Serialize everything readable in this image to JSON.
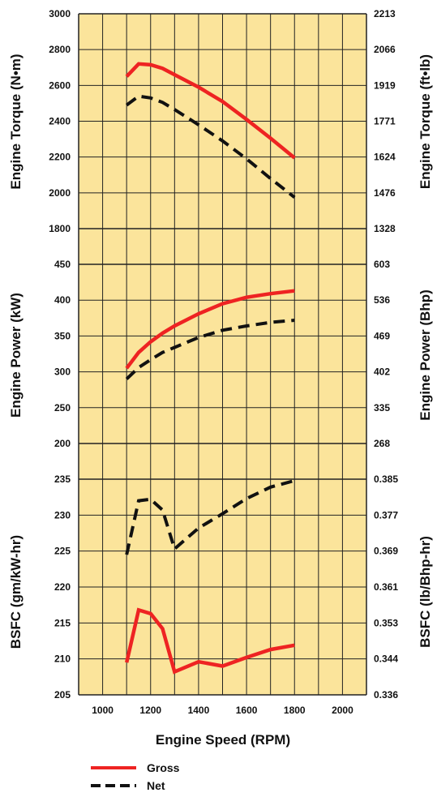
{
  "colors": {
    "plot_bg": "#fbe49b",
    "grid": "#222222",
    "gross": "#ee2322",
    "net": "#111111"
  },
  "chart_data": [
    {
      "type": "line",
      "title": "",
      "xlabel": "Engine Speed (RPM)",
      "ylabel": "Engine Torque (N•m)",
      "ylabel_right": "Engine Torque (ft•lb)",
      "ylim": [
        1800,
        3000
      ],
      "yticks": [
        "3000",
        "2800",
        "2600",
        "2400",
        "2200",
        "2000",
        "1800"
      ],
      "yticks_right": [
        "2213",
        "2066",
        "1919",
        "1771",
        "1624",
        "1476",
        "1328"
      ],
      "series": [
        {
          "name": "Gross",
          "x": [
            1100,
            1150,
            1200,
            1250,
            1300,
            1400,
            1500,
            1600,
            1700,
            1800
          ],
          "y": [
            2650,
            2720,
            2715,
            2695,
            2660,
            2590,
            2510,
            2410,
            2305,
            2195
          ]
        },
        {
          "name": "Net",
          "x": [
            1100,
            1150,
            1200,
            1250,
            1300,
            1400,
            1500,
            1600,
            1700,
            1800
          ],
          "y": [
            2490,
            2540,
            2530,
            2505,
            2465,
            2380,
            2290,
            2190,
            2080,
            1975
          ]
        }
      ]
    },
    {
      "type": "line",
      "xlabel": "Engine Speed (RPM)",
      "ylabel": "Engine Power (kW)",
      "ylabel_right": "Engine Power (Bhp)",
      "ylim": [
        200,
        450
      ],
      "yticks": [
        "450",
        "400",
        "350",
        "300",
        "250",
        "200"
      ],
      "yticks_right": [
        "603",
        "536",
        "469",
        "402",
        "335",
        "268"
      ],
      "series": [
        {
          "name": "Gross",
          "x": [
            1100,
            1150,
            1200,
            1250,
            1300,
            1400,
            1500,
            1600,
            1700,
            1800
          ],
          "y": [
            305,
            327,
            342,
            354,
            364,
            381,
            395,
            404,
            409,
            413
          ]
        },
        {
          "name": "Net",
          "x": [
            1100,
            1150,
            1200,
            1250,
            1300,
            1400,
            1500,
            1600,
            1700,
            1800
          ],
          "y": [
            290,
            306,
            317,
            327,
            334,
            348,
            358,
            364,
            369,
            372
          ]
        }
      ]
    },
    {
      "type": "line",
      "xlabel": "Engine Speed (RPM)",
      "ylabel": "BSFC (gm/kW-hr)",
      "ylabel_right": "BSFC (lb/Bhp-hr)",
      "ylim": [
        205,
        235
      ],
      "yticks": [
        "235",
        "230",
        "225",
        "220",
        "215",
        "210",
        "205"
      ],
      "yticks_right": [
        "0.385",
        "0.377",
        "0.369",
        "0.361",
        "0.353",
        "0.344",
        "0.336"
      ],
      "xticks": [
        "1000",
        "1200",
        "1400",
        "1600",
        "1800",
        "2000"
      ],
      "xlim": [
        900,
        2100
      ],
      "series": [
        {
          "name": "Gross",
          "x": [
            1100,
            1150,
            1200,
            1250,
            1300,
            1400,
            1500,
            1600,
            1700,
            1800
          ],
          "y": [
            209.5,
            216.8,
            216.3,
            214.2,
            208.2,
            209.6,
            209.0,
            210.2,
            211.3,
            211.9
          ]
        },
        {
          "name": "Net",
          "x": [
            1100,
            1150,
            1200,
            1250,
            1300,
            1400,
            1500,
            1600,
            1700,
            1800
          ],
          "y": [
            224.5,
            232.0,
            232.2,
            230.7,
            225.3,
            228.2,
            230.2,
            232.3,
            233.9,
            234.8
          ]
        }
      ]
    }
  ],
  "legend": [
    {
      "name": "Gross",
      "style": "solid"
    },
    {
      "name": "Net",
      "style": "dashed"
    }
  ]
}
